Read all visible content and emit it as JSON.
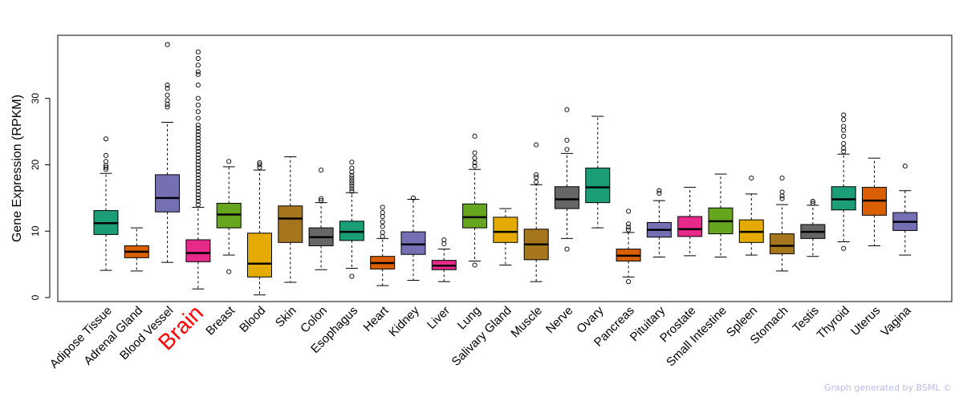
{
  "chart_data": {
    "type": "box",
    "ylabel": "Gene Expression (RPKM)",
    "xlabel": "",
    "ylim": [
      -0.6,
      39.5
    ],
    "yticks": [
      0,
      10,
      20,
      30
    ],
    "highlight_category": "Brain",
    "categories": [
      {
        "name": "Adipose Tissue",
        "color": "#1b9e77",
        "whisker_low": 4.1,
        "q1": 9.5,
        "median": 11.2,
        "q3": 13.1,
        "whisker_high": 18.7,
        "outliers": [
          19.3,
          19.6,
          19.9,
          20.5,
          21.4,
          23.9
        ]
      },
      {
        "name": "Adrenal Gland",
        "color": "#d95f02",
        "whisker_low": 4.0,
        "q1": 6.0,
        "median": 6.9,
        "q3": 7.8,
        "whisker_high": 10.5,
        "outliers": []
      },
      {
        "name": "Blood Vessel",
        "color": "#7570b3",
        "whisker_low": 5.3,
        "q1": 12.9,
        "median": 15.0,
        "q3": 18.5,
        "whisker_high": 26.4,
        "outliers": [
          28.7,
          29.1,
          29.7,
          30.5,
          31.5,
          32.0,
          38.1
        ]
      },
      {
        "name": "Brain",
        "color": "#e7298a",
        "whisker_low": 1.3,
        "q1": 5.4,
        "median": 6.7,
        "q3": 8.7,
        "whisker_high": 13.6,
        "outliers": [
          14.0,
          14.5,
          15.0,
          15.5,
          16.0,
          16.5,
          17.0,
          17.5,
          18.0,
          18.5,
          19.0,
          19.5,
          20.0,
          20.5,
          21.0,
          21.5,
          22.0,
          22.5,
          23.0,
          23.5,
          24.0,
          24.5,
          25.0,
          25.5,
          26.0,
          27.0,
          28.0,
          29.0,
          30.0,
          32.0,
          33.6,
          34.0,
          35.0,
          36.0,
          37.0
        ]
      },
      {
        "name": "Breast",
        "color": "#66a61e",
        "whisker_low": 6.4,
        "q1": 10.5,
        "median": 12.5,
        "q3": 14.2,
        "whisker_high": 19.7,
        "outliers": [
          3.9,
          20.5
        ]
      },
      {
        "name": "Blood",
        "color": "#e6ab02",
        "whisker_low": 0.4,
        "q1": 3.1,
        "median": 5.1,
        "q3": 9.7,
        "whisker_high": 19.2,
        "outliers": [
          19.6,
          20.0,
          20.3
        ]
      },
      {
        "name": "Skin",
        "color": "#a6761d",
        "whisker_low": 2.3,
        "q1": 8.3,
        "median": 11.9,
        "q3": 13.8,
        "whisker_high": 21.2,
        "outliers": []
      },
      {
        "name": "Colon",
        "color": "#666666",
        "whisker_low": 4.2,
        "q1": 7.8,
        "median": 9.1,
        "q3": 10.5,
        "whisker_high": 14.3,
        "outliers": [
          14.6,
          14.9,
          19.2
        ]
      },
      {
        "name": "Esophagus",
        "color": "#1b9e77",
        "whisker_low": 4.4,
        "q1": 8.6,
        "median": 9.9,
        "q3": 11.5,
        "whisker_high": 15.8,
        "outliers": [
          3.2,
          16.0,
          16.4,
          16.8,
          17.2,
          17.6,
          18.0,
          18.4,
          18.9,
          19.5,
          20.4
        ]
      },
      {
        "name": "Heart",
        "color": "#d95f02",
        "whisker_low": 1.8,
        "q1": 4.3,
        "median": 5.2,
        "q3": 6.2,
        "whisker_high": 8.9,
        "outliers": [
          9.2,
          9.8,
          10.7,
          11.4,
          12.2,
          12.8,
          13.6
        ]
      },
      {
        "name": "Kidney",
        "color": "#7570b3",
        "whisker_low": 2.6,
        "q1": 6.5,
        "median": 8.0,
        "q3": 9.9,
        "whisker_high": 14.8,
        "outliers": [
          15.0
        ]
      },
      {
        "name": "Liver",
        "color": "#e7298a",
        "whisker_low": 2.4,
        "q1": 4.2,
        "median": 4.8,
        "q3": 5.6,
        "whisker_high": 7.3,
        "outliers": [
          8.1,
          8.7
        ]
      },
      {
        "name": "Lung",
        "color": "#66a61e",
        "whisker_low": 5.5,
        "q1": 10.5,
        "median": 12.1,
        "q3": 14.1,
        "whisker_high": 19.3,
        "outliers": [
          4.9,
          19.8,
          20.3,
          21.0,
          21.8,
          24.3
        ]
      },
      {
        "name": "Salivary Gland",
        "color": "#e6ab02",
        "whisker_low": 4.9,
        "q1": 8.3,
        "median": 9.9,
        "q3": 12.1,
        "whisker_high": 13.4,
        "outliers": []
      },
      {
        "name": "Muscle",
        "color": "#a6761d",
        "whisker_low": 2.4,
        "q1": 5.7,
        "median": 8.0,
        "q3": 10.3,
        "whisker_high": 17.0,
        "outliers": [
          17.4,
          18.1,
          18.5,
          23.0
        ]
      },
      {
        "name": "Nerve",
        "color": "#666666",
        "whisker_low": 8.9,
        "q1": 13.4,
        "median": 14.8,
        "q3": 16.7,
        "whisker_high": 21.7,
        "outliers": [
          7.3,
          22.3,
          23.7,
          28.3
        ]
      },
      {
        "name": "Ovary",
        "color": "#1b9e77",
        "whisker_low": 10.5,
        "q1": 14.3,
        "median": 16.6,
        "q3": 19.5,
        "whisker_high": 27.3,
        "outliers": []
      },
      {
        "name": "Pancreas",
        "color": "#d95f02",
        "whisker_low": 3.1,
        "q1": 5.5,
        "median": 6.3,
        "q3": 7.3,
        "whisker_high": 9.8,
        "outliers": [
          2.4,
          10.2,
          10.6,
          11.1,
          13.0
        ]
      },
      {
        "name": "Pituitary",
        "color": "#7570b3",
        "whisker_low": 6.1,
        "q1": 9.1,
        "median": 10.2,
        "q3": 11.3,
        "whisker_high": 14.6,
        "outliers": [
          15.7,
          16.1
        ]
      },
      {
        "name": "Prostate",
        "color": "#e7298a",
        "whisker_low": 6.3,
        "q1": 9.2,
        "median": 10.3,
        "q3": 12.2,
        "whisker_high": 16.6,
        "outliers": []
      },
      {
        "name": "Small Intestine",
        "color": "#66a61e",
        "whisker_low": 6.1,
        "q1": 9.6,
        "median": 11.5,
        "q3": 13.5,
        "whisker_high": 18.6,
        "outliers": []
      },
      {
        "name": "Spleen",
        "color": "#e6ab02",
        "whisker_low": 6.4,
        "q1": 8.3,
        "median": 9.9,
        "q3": 11.7,
        "whisker_high": 15.6,
        "outliers": [
          18.0
        ]
      },
      {
        "name": "Stomach",
        "color": "#a6761d",
        "whisker_low": 4.0,
        "q1": 6.6,
        "median": 7.8,
        "q3": 9.6,
        "whisker_high": 14.0,
        "outliers": [
          14.9,
          15.3,
          15.9,
          18.0
        ]
      },
      {
        "name": "Testis",
        "color": "#666666",
        "whisker_low": 6.2,
        "q1": 8.9,
        "median": 9.9,
        "q3": 11.0,
        "whisker_high": 13.9,
        "outliers": [
          14.2,
          14.5
        ]
      },
      {
        "name": "Thyroid",
        "color": "#1b9e77",
        "whisker_low": 8.4,
        "q1": 13.2,
        "median": 14.8,
        "q3": 16.7,
        "whisker_high": 21.6,
        "outliers": [
          7.4,
          22.0,
          22.5,
          23.2,
          24.3,
          25.2,
          25.8,
          26.8,
          27.5
        ]
      },
      {
        "name": "Uterus",
        "color": "#d95f02",
        "whisker_low": 7.8,
        "q1": 12.4,
        "median": 14.6,
        "q3": 16.6,
        "whisker_high": 21.0,
        "outliers": []
      },
      {
        "name": "Vagina",
        "color": "#7570b3",
        "whisker_low": 6.4,
        "q1": 10.1,
        "median": 11.4,
        "q3": 12.8,
        "whisker_high": 16.1,
        "outliers": [
          19.8
        ]
      }
    ]
  },
  "footer": {
    "credit": "Graph generated by BSML ©"
  }
}
